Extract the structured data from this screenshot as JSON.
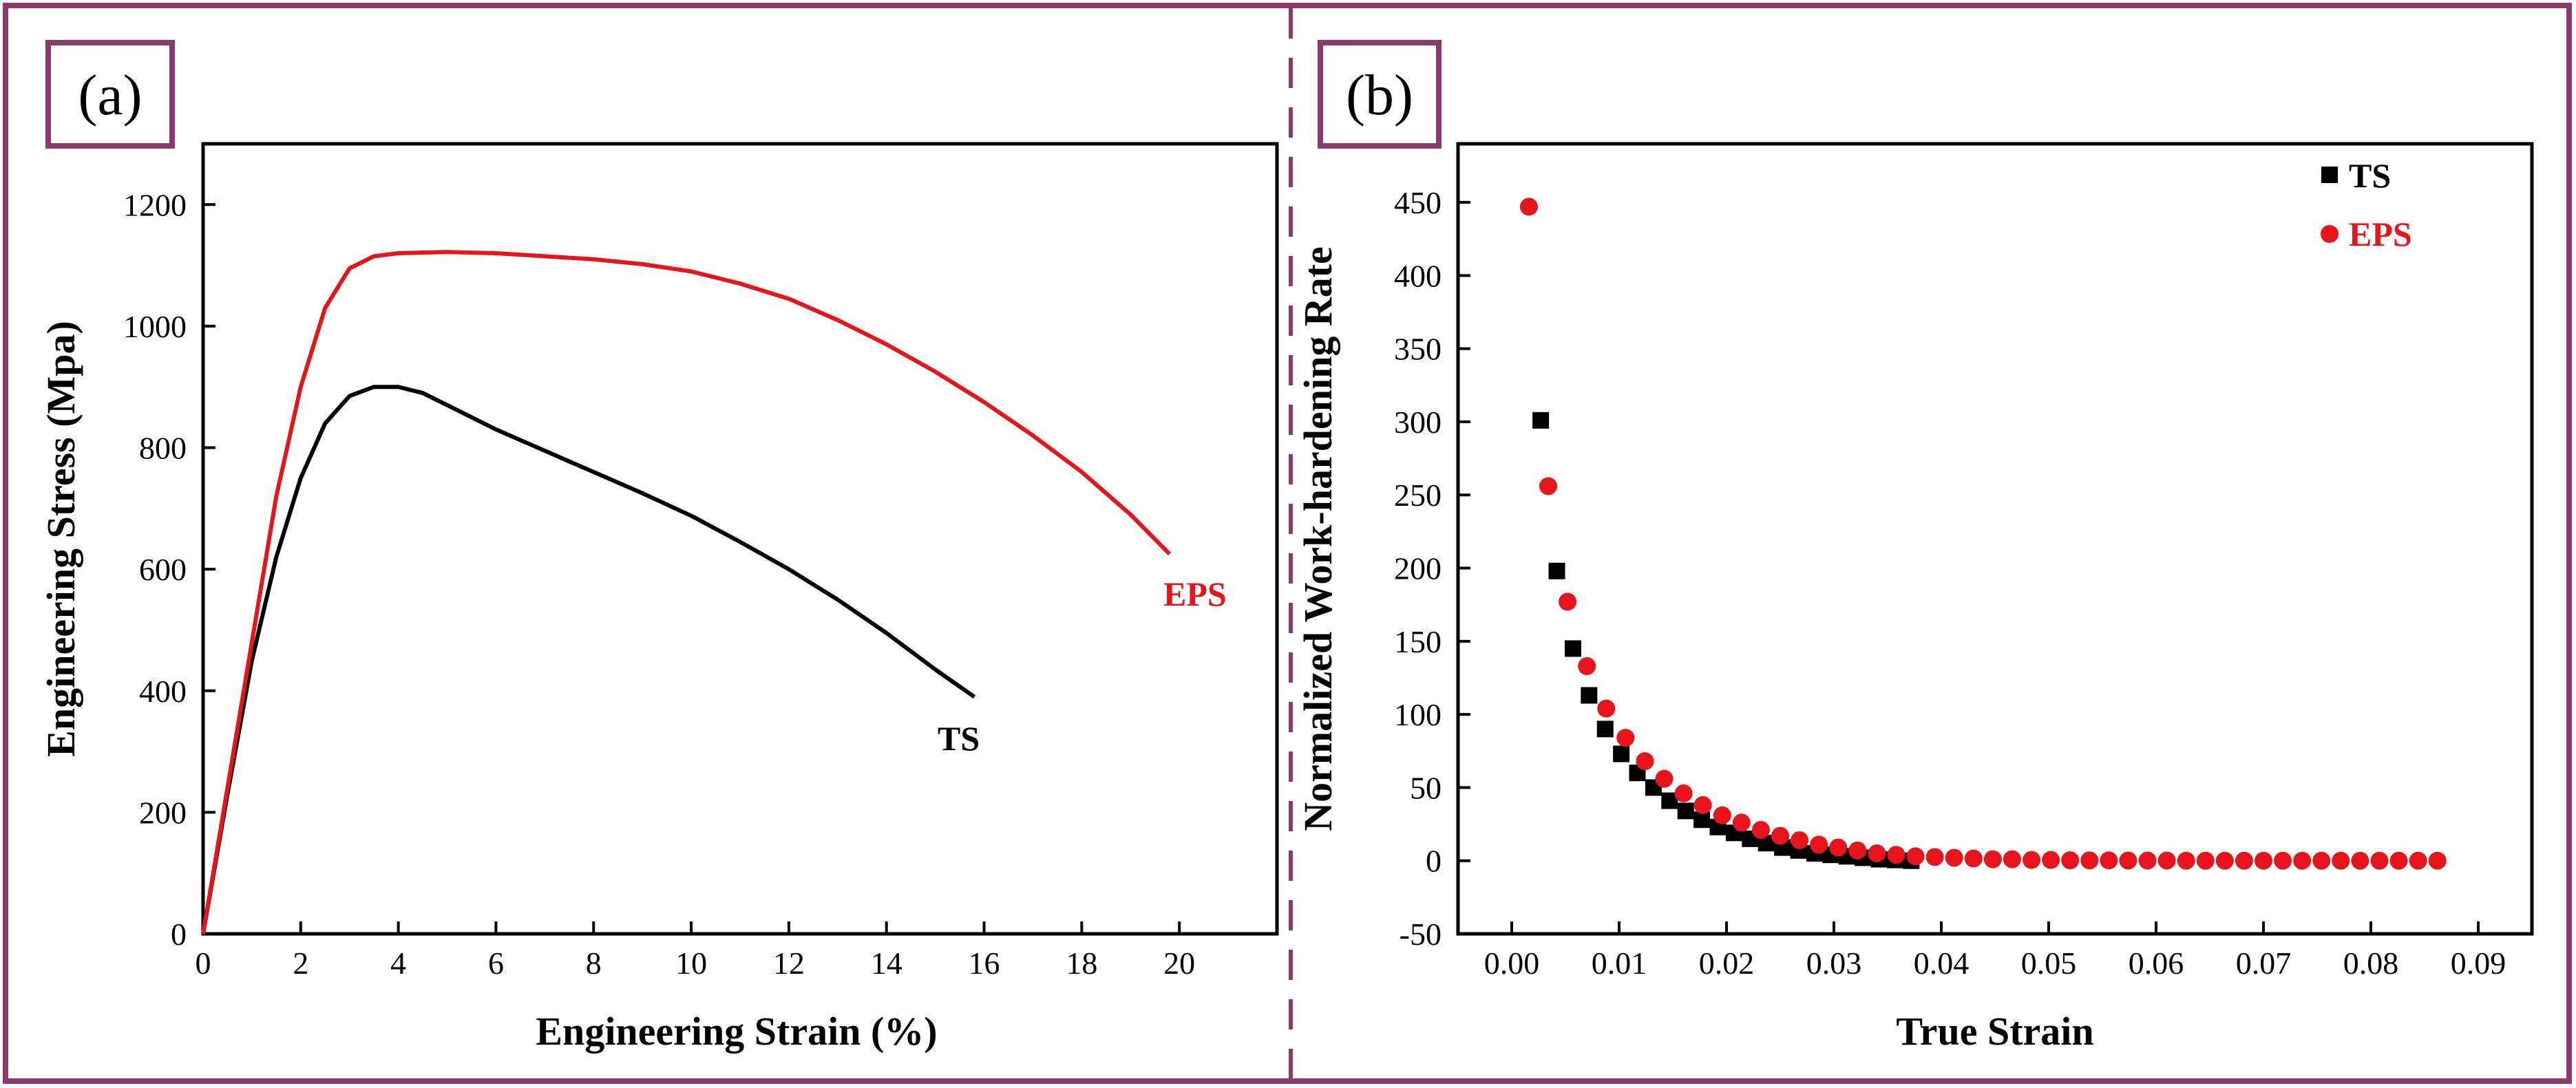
{
  "colors": {
    "frame": "#8b3a6e",
    "ts": "#000000",
    "eps": "#e8141c",
    "axis": "#000000"
  },
  "chart_data": [
    {
      "type": "line",
      "panel_label": "(a)",
      "xlabel": "Engineering Strain (%)",
      "ylabel": "Engineering Stress (Mpa)",
      "xlim": [
        0,
        22
      ],
      "ylim": [
        0,
        1300
      ],
      "xticks": [
        0,
        2,
        4,
        6,
        8,
        10,
        12,
        14,
        16,
        18,
        20
      ],
      "yticks": [
        0,
        200,
        400,
        600,
        800,
        1000,
        1200
      ],
      "series": [
        {
          "name": "TS",
          "label": "TS",
          "x": [
            0,
            0.5,
            1.0,
            1.5,
            2.0,
            2.5,
            3.0,
            3.5,
            4.0,
            4.5,
            5,
            6,
            7,
            8,
            9,
            10,
            11,
            12,
            13,
            14,
            15,
            15.8
          ],
          "y": [
            0,
            230,
            450,
            620,
            750,
            840,
            885,
            900,
            900,
            890,
            870,
            830,
            795,
            760,
            725,
            688,
            645,
            600,
            550,
            495,
            435,
            390
          ]
        },
        {
          "name": "EPS",
          "label": "EPS",
          "x": [
            0,
            0.5,
            1.0,
            1.5,
            2.0,
            2.5,
            3.0,
            3.5,
            4.0,
            5,
            6,
            7,
            8,
            9,
            10,
            11,
            12,
            13,
            14,
            15,
            16,
            17,
            18,
            19,
            19.8
          ],
          "y": [
            0,
            240,
            480,
            720,
            900,
            1030,
            1095,
            1115,
            1120,
            1122,
            1120,
            1115,
            1110,
            1102,
            1090,
            1070,
            1045,
            1010,
            970,
            925,
            875,
            820,
            760,
            690,
            625
          ]
        }
      ]
    },
    {
      "type": "scatter",
      "panel_label": "(b)",
      "xlabel": "True Strain",
      "ylabel": "Normalized Work-hardening Rate",
      "xlim": [
        -0.005,
        0.095
      ],
      "ylim": [
        -50,
        490
      ],
      "xticks": [
        "0.00",
        "0.01",
        "0.02",
        "0.03",
        "0.04",
        "0.05",
        "0.06",
        "0.07",
        "0.08",
        "0.09"
      ],
      "yticks": [
        -50,
        0,
        50,
        100,
        150,
        200,
        250,
        300,
        350,
        400,
        450
      ],
      "series": [
        {
          "name": "TS",
          "marker": "square",
          "x": [
            0.0027,
            0.0042,
            0.0057,
            0.0072,
            0.0087,
            0.0102,
            0.0117,
            0.0132,
            0.0147,
            0.0162,
            0.0177,
            0.0192,
            0.0207,
            0.0222,
            0.0237,
            0.0252,
            0.0267,
            0.0282,
            0.0297,
            0.0312,
            0.0327,
            0.0342,
            0.0357,
            0.0372
          ],
          "y": [
            301,
            198,
            145,
            113,
            90,
            73,
            60,
            50,
            41,
            34,
            28,
            23,
            19,
            15,
            12,
            9,
            7,
            5,
            4,
            3,
            2,
            1,
            0.5,
            0
          ]
        },
        {
          "name": "EPS",
          "marker": "circle",
          "x": [
            0.0016,
            0.0034,
            0.0052,
            0.007,
            0.0088,
            0.0106,
            0.0124,
            0.0142,
            0.016,
            0.0178,
            0.0196,
            0.0214,
            0.0232,
            0.025,
            0.0268,
            0.0286,
            0.0304,
            0.0322,
            0.034,
            0.0358,
            0.0376,
            0.0394,
            0.0412,
            0.043,
            0.0448,
            0.0466,
            0.0484,
            0.0502,
            0.052,
            0.0538,
            0.0556,
            0.0574,
            0.0592,
            0.061,
            0.0628,
            0.0646,
            0.0664,
            0.0682,
            0.07,
            0.0718,
            0.0736,
            0.0754,
            0.0772,
            0.079,
            0.0808,
            0.0826,
            0.0844,
            0.0862
          ],
          "y": [
            447,
            256,
            177,
            133,
            104,
            84,
            68,
            56,
            46,
            38,
            31,
            26,
            21,
            17,
            14,
            11,
            9,
            7,
            5,
            4,
            3,
            2.5,
            2,
            1.5,
            1,
            1,
            0.5,
            0.5,
            0.3,
            0.2,
            0.2,
            0.1,
            0.1,
            0.1,
            0,
            0,
            0,
            0,
            0,
            0,
            0,
            0,
            0,
            0,
            0,
            0,
            0,
            0
          ]
        }
      ],
      "legend": [
        {
          "label": "TS",
          "marker": "square"
        },
        {
          "label": "EPS",
          "marker": "circle"
        }
      ],
      "legend_position": "top-right"
    }
  ]
}
